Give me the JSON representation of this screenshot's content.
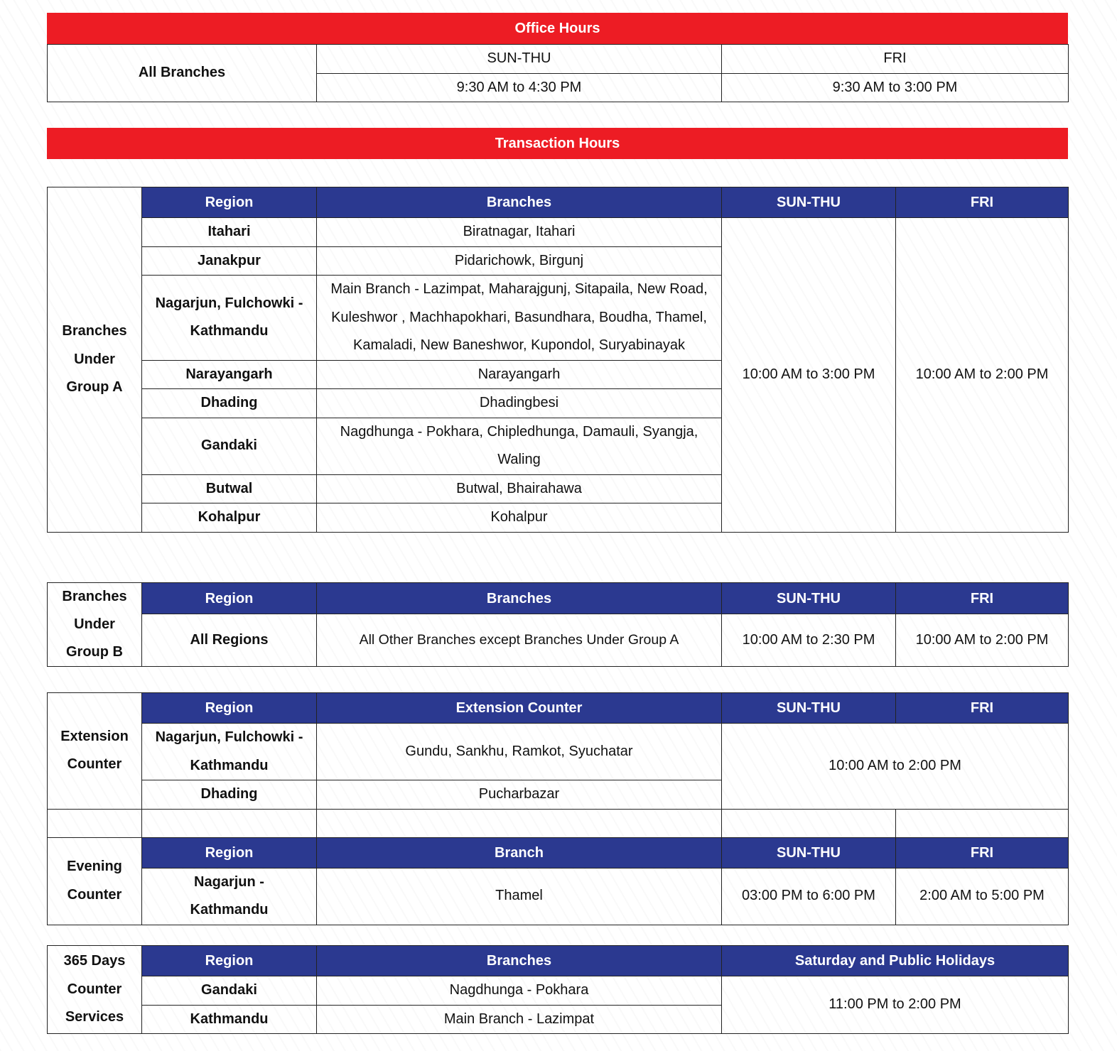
{
  "office_hours": {
    "title": "Office Hours",
    "label": "All Branches",
    "sun_thu": "SUN-THU",
    "fri": "FRI",
    "sun_thu_time": "9:30 AM to 4:30 PM",
    "fri_time": "9:30 AM to 3:00 PM"
  },
  "transaction_hours": {
    "title": "Transaction Hours"
  },
  "headers": {
    "region": "Region",
    "branches": "Branches",
    "branch": "Branch",
    "extension_counter": "Extension Counter",
    "sun_thu": "SUN-THU",
    "fri": "FRI",
    "sat_holidays": "Saturday and Public Holidays"
  },
  "group_a": {
    "label_lines": [
      "Branches",
      "Under",
      "Group A"
    ],
    "sun_thu": "10:00 AM to 3:00 PM",
    "fri": "10:00 AM to 2:00 PM",
    "rows": [
      {
        "region": "Itahari",
        "branches": "Biratnagar, Itahari"
      },
      {
        "region": "Janakpur",
        "branches": "Pidarichowk, Birgunj"
      },
      {
        "region": "Nagarjun, Fulchowki - Kathmandu",
        "branches": "Main Branch - Lazimpat, Maharajgunj, Sitapaila, New Road, Kuleshwor , Machhapokhari, Basundhara, Boudha, Thamel, Kamaladi, New Baneshwor, Kupondol, Suryabinayak"
      },
      {
        "region": "Narayangarh",
        "branches": "Narayangarh"
      },
      {
        "region": "Dhading",
        "branches": "Dhadingbesi"
      },
      {
        "region": "Gandaki",
        "branches": "Nagdhunga - Pokhara, Chipledhunga, Damauli, Syangja, Waling"
      },
      {
        "region": "Butwal",
        "branches": "Butwal, Bhairahawa"
      },
      {
        "region": "Kohalpur",
        "branches": "Kohalpur"
      }
    ]
  },
  "group_b": {
    "label_lines": [
      "Branches",
      "Under",
      "Group B"
    ],
    "region": "All Regions",
    "branches": "All Other Branches except Branches Under Group A",
    "sun_thu": "10:00 AM to 2:30 PM",
    "fri": "10:00 AM to 2:00 PM"
  },
  "extension": {
    "label_lines": [
      "Extension",
      "Counter"
    ],
    "time": "10:00 AM to 2:00 PM",
    "rows": [
      {
        "region": "Nagarjun, Fulchowki - Kathmandu",
        "counter": "Gundu, Sankhu, Ramkot, Syuchatar"
      },
      {
        "region": "Dhading",
        "counter": "Pucharbazar"
      }
    ]
  },
  "evening": {
    "label_lines": [
      "Evening",
      "Counter"
    ],
    "region": "Nagarjun - Kathmandu",
    "branch": "Thamel",
    "sun_thu": "03:00 PM to 6:00 PM",
    "fri": "2:00 AM to 5:00 PM"
  },
  "days365": {
    "label_lines": [
      "365 Days",
      "Counter",
      "Services"
    ],
    "time": "11:00 PM to 2:00 PM",
    "rows": [
      {
        "region": "Gandaki",
        "branches": "Nagdhunga - Pokhara"
      },
      {
        "region": "Kathmandu",
        "branches": "Main Branch - Lazimpat"
      }
    ]
  },
  "colors": {
    "red": "#ED1C24",
    "blue": "#2B3990"
  }
}
